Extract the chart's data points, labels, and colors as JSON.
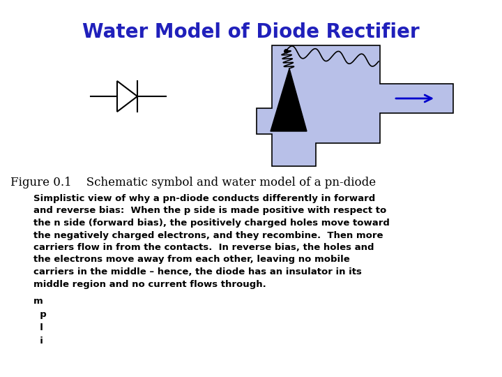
{
  "title": "Water Model of Diode Rectifier",
  "title_color": "#2020bb",
  "title_fontsize": 20,
  "figure_caption": "Figure 0.1    Schematic symbol and water model of a pn-diode",
  "body_text": "Simplistic view of why a pn-diode conducts differently in forward\nand reverse bias:  When the p side is made positive with respect to\nthe n side (forward bias), the positively charged holes move toward\nthe negatively charged electrons, and they recombine.  Then more\ncarriers flow in from the contacts.  In reverse bias, the holes and\nthe electrons move away from each other, leaving no mobile\ncarriers in the middle – hence, the diode has an insulator in its\nmiddle region and no current flows through.",
  "extra_text": "m\n  p\n  l\n  i",
  "water_color": "#b8c0e8",
  "arrow_color": "#0000cc",
  "bg_color": "#ffffff"
}
